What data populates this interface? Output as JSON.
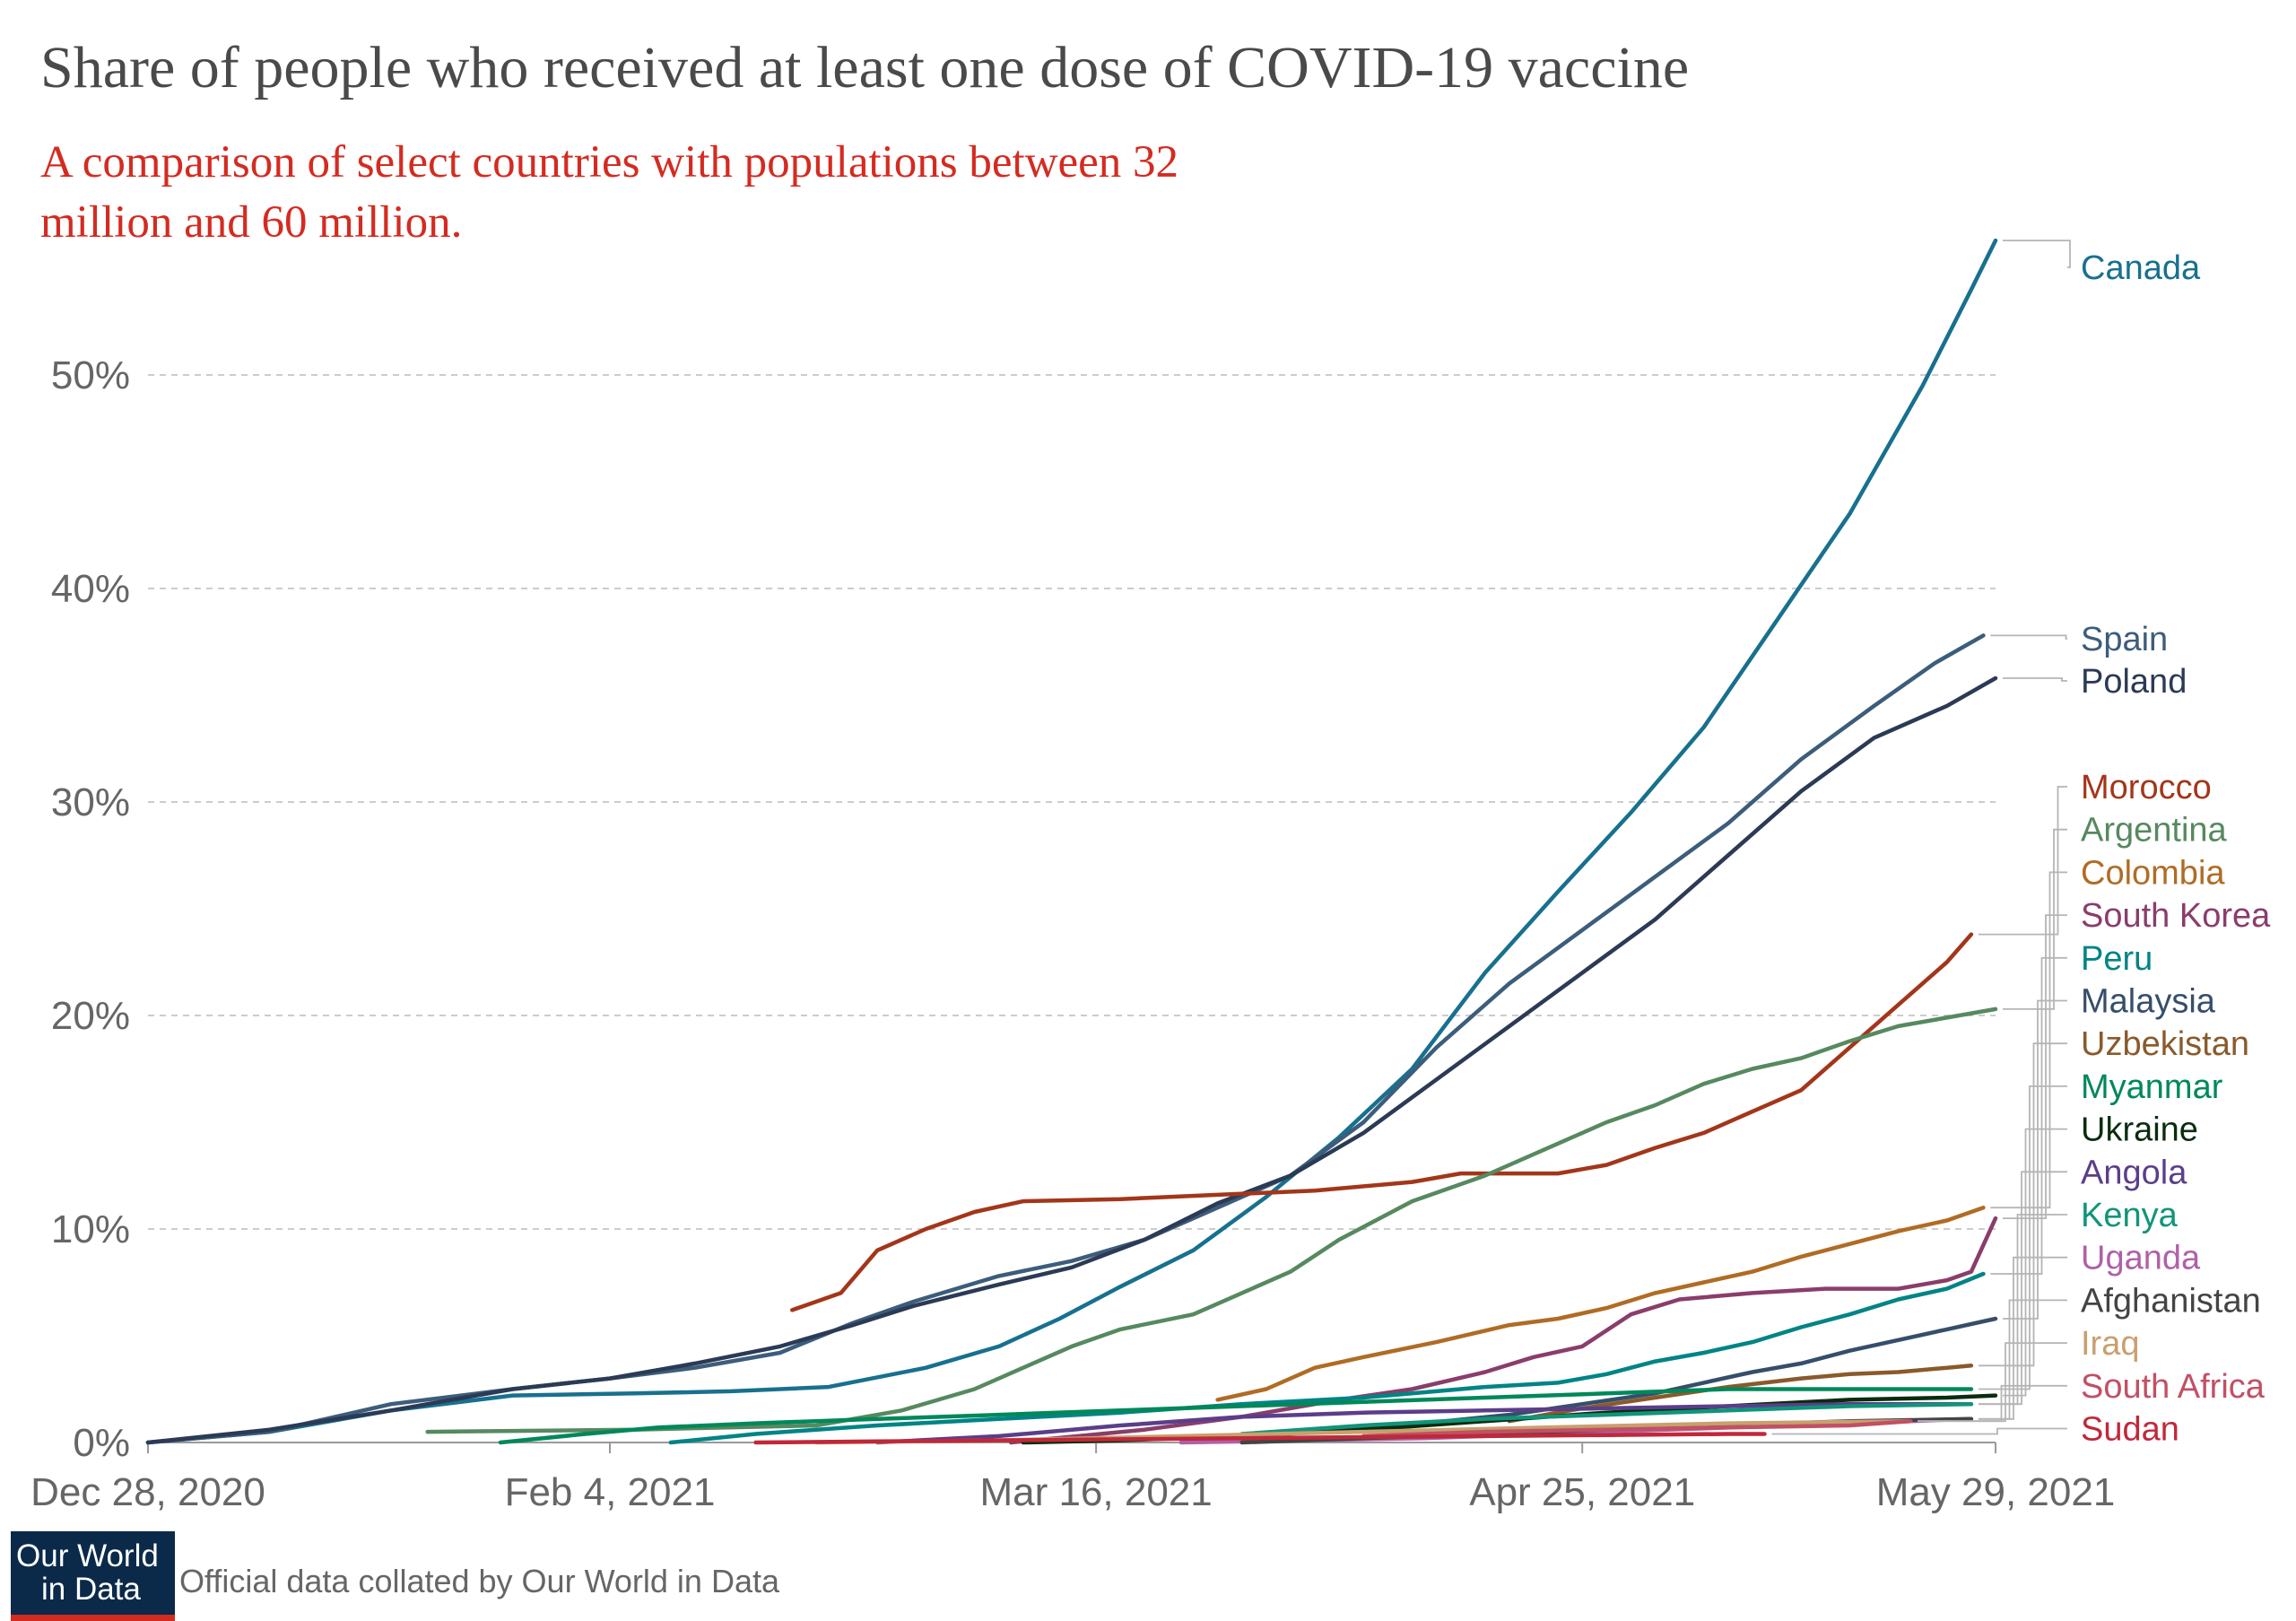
{
  "title": "Share of people who received at least one dose of COVID-19 vaccine",
  "subtitle": "A comparison of select countries with populations between 32 million and 60 million.",
  "source": "Official data collated by Our World in Data",
  "logo": {
    "line1": "Our World",
    "line2": "in Data"
  },
  "chart_data": {
    "type": "line",
    "title": "Share of people who received at least one dose of COVID-19 vaccine",
    "xlabel": "",
    "ylabel": "",
    "x_unit": "days since Dec 28, 2020",
    "xlim": [
      0,
      152
    ],
    "ylim": [
      0,
      56
    ],
    "x_ticks": [
      {
        "day": 0,
        "label": "Dec 28, 2020"
      },
      {
        "day": 38,
        "label": "Feb 4, 2021"
      },
      {
        "day": 78,
        "label": "Mar 16, 2021"
      },
      {
        "day": 118,
        "label": "Apr 25, 2021"
      },
      {
        "day": 152,
        "label": "May 29, 2021"
      }
    ],
    "y_ticks": [
      {
        "value": 0,
        "label": "0%"
      },
      {
        "value": 10,
        "label": "10%"
      },
      {
        "value": 20,
        "label": "20%"
      },
      {
        "value": 30,
        "label": "30%"
      },
      {
        "value": 40,
        "label": "40%"
      },
      {
        "value": 50,
        "label": "50%"
      }
    ],
    "gridlines": [
      10,
      20,
      30,
      40,
      50
    ],
    "series": [
      {
        "name": "Canada",
        "color": "#18708f",
        "points": [
          [
            0,
            0
          ],
          [
            10,
            0.5
          ],
          [
            20,
            1.5
          ],
          [
            30,
            2.2
          ],
          [
            40,
            2.3
          ],
          [
            48,
            2.4
          ],
          [
            56,
            2.6
          ],
          [
            64,
            3.5
          ],
          [
            70,
            4.5
          ],
          [
            75,
            5.8
          ],
          [
            80,
            7.3
          ],
          [
            86,
            9.0
          ],
          [
            92,
            11.5
          ],
          [
            98,
            14.3
          ],
          [
            104,
            17.5
          ],
          [
            110,
            22.0
          ],
          [
            116,
            25.8
          ],
          [
            122,
            29.5
          ],
          [
            128,
            33.5
          ],
          [
            134,
            38.5
          ],
          [
            140,
            43.5
          ],
          [
            146,
            49.5
          ],
          [
            150,
            54.0
          ],
          [
            152,
            56.3
          ]
        ]
      },
      {
        "name": "Spain",
        "color": "#3c5d7b",
        "points": [
          [
            0,
            0
          ],
          [
            10,
            0.5
          ],
          [
            20,
            1.8
          ],
          [
            30,
            2.5
          ],
          [
            38,
            3.0
          ],
          [
            45,
            3.5
          ],
          [
            52,
            4.2
          ],
          [
            58,
            5.6
          ],
          [
            63,
            6.6
          ],
          [
            70,
            7.8
          ],
          [
            76,
            8.5
          ],
          [
            82,
            9.5
          ],
          [
            88,
            11.0
          ],
          [
            94,
            12.5
          ],
          [
            100,
            15.0
          ],
          [
            106,
            18.5
          ],
          [
            112,
            21.5
          ],
          [
            118,
            24.0
          ],
          [
            124,
            26.5
          ],
          [
            130,
            29.0
          ],
          [
            136,
            32.0
          ],
          [
            142,
            34.5
          ],
          [
            147,
            36.5
          ],
          [
            151,
            37.8
          ]
        ]
      },
      {
        "name": "Poland",
        "color": "#2b3a55",
        "points": [
          [
            0,
            0
          ],
          [
            10,
            0.6
          ],
          [
            20,
            1.5
          ],
          [
            30,
            2.5
          ],
          [
            38,
            3.0
          ],
          [
            45,
            3.7
          ],
          [
            52,
            4.5
          ],
          [
            58,
            5.5
          ],
          [
            63,
            6.4
          ],
          [
            70,
            7.4
          ],
          [
            76,
            8.2
          ],
          [
            82,
            9.5
          ],
          [
            88,
            11.2
          ],
          [
            94,
            12.5
          ],
          [
            100,
            14.5
          ],
          [
            106,
            17.0
          ],
          [
            112,
            19.5
          ],
          [
            118,
            22.0
          ],
          [
            124,
            24.5
          ],
          [
            130,
            27.5
          ],
          [
            136,
            30.5
          ],
          [
            142,
            33.0
          ],
          [
            148,
            34.5
          ],
          [
            152,
            35.8
          ]
        ]
      },
      {
        "name": "Morocco",
        "color": "#a3361a",
        "points": [
          [
            53,
            6.2
          ],
          [
            57,
            7.0
          ],
          [
            60,
            9.0
          ],
          [
            64,
            10.0
          ],
          [
            68,
            10.8
          ],
          [
            72,
            11.3
          ],
          [
            80,
            11.4
          ],
          [
            88,
            11.6
          ],
          [
            96,
            11.8
          ],
          [
            104,
            12.2
          ],
          [
            108,
            12.6
          ],
          [
            116,
            12.6
          ],
          [
            120,
            13.0
          ],
          [
            124,
            13.8
          ],
          [
            128,
            14.5
          ],
          [
            132,
            15.5
          ],
          [
            136,
            16.5
          ],
          [
            140,
            18.5
          ],
          [
            144,
            20.5
          ],
          [
            148,
            22.5
          ],
          [
            150,
            23.8
          ]
        ]
      },
      {
        "name": "Argentina",
        "color": "#56895f",
        "points": [
          [
            23,
            0.5
          ],
          [
            40,
            0.6
          ],
          [
            55,
            0.8
          ],
          [
            62,
            1.5
          ],
          [
            68,
            2.5
          ],
          [
            72,
            3.5
          ],
          [
            76,
            4.5
          ],
          [
            80,
            5.3
          ],
          [
            86,
            6.0
          ],
          [
            90,
            7.0
          ],
          [
            94,
            8.0
          ],
          [
            98,
            9.5
          ],
          [
            104,
            11.3
          ],
          [
            110,
            12.5
          ],
          [
            116,
            14.0
          ],
          [
            120,
            15.0
          ],
          [
            124,
            15.8
          ],
          [
            128,
            16.8
          ],
          [
            132,
            17.5
          ],
          [
            136,
            18.0
          ],
          [
            140,
            18.8
          ],
          [
            144,
            19.5
          ],
          [
            148,
            19.9
          ],
          [
            152,
            20.3
          ]
        ]
      },
      {
        "name": "Colombia",
        "color": "#b06c24",
        "points": [
          [
            88,
            2.0
          ],
          [
            92,
            2.5
          ],
          [
            96,
            3.5
          ],
          [
            100,
            4.0
          ],
          [
            106,
            4.7
          ],
          [
            112,
            5.5
          ],
          [
            116,
            5.8
          ],
          [
            120,
            6.3
          ],
          [
            124,
            7.0
          ],
          [
            128,
            7.5
          ],
          [
            132,
            8.0
          ],
          [
            136,
            8.7
          ],
          [
            140,
            9.3
          ],
          [
            144,
            9.9
          ],
          [
            148,
            10.4
          ],
          [
            151,
            11.0
          ]
        ]
      },
      {
        "name": "South Korea",
        "color": "#8a3d6b",
        "points": [
          [
            71,
            0
          ],
          [
            82,
            0.6
          ],
          [
            90,
            1.2
          ],
          [
            98,
            2.0
          ],
          [
            104,
            2.5
          ],
          [
            110,
            3.3
          ],
          [
            114,
            4.0
          ],
          [
            118,
            4.5
          ],
          [
            122,
            6.0
          ],
          [
            126,
            6.7
          ],
          [
            132,
            7.0
          ],
          [
            138,
            7.2
          ],
          [
            144,
            7.2
          ],
          [
            148,
            7.6
          ],
          [
            150,
            8.0
          ],
          [
            152,
            10.5
          ]
        ]
      },
      {
        "name": "Peru",
        "color": "#008485",
        "points": [
          [
            43,
            0
          ],
          [
            50,
            0.4
          ],
          [
            60,
            0.8
          ],
          [
            70,
            1.1
          ],
          [
            80,
            1.4
          ],
          [
            90,
            1.8
          ],
          [
            100,
            2.1
          ],
          [
            106,
            2.4
          ],
          [
            110,
            2.6
          ],
          [
            116,
            2.8
          ],
          [
            120,
            3.2
          ],
          [
            124,
            3.8
          ],
          [
            128,
            4.2
          ],
          [
            132,
            4.7
          ],
          [
            136,
            5.4
          ],
          [
            140,
            6.0
          ],
          [
            144,
            6.7
          ],
          [
            148,
            7.2
          ],
          [
            151,
            7.9
          ]
        ]
      },
      {
        "name": "Malaysia",
        "color": "#364e6b",
        "points": [
          [
            85,
            0.2
          ],
          [
            95,
            0.5
          ],
          [
            105,
            0.9
          ],
          [
            112,
            1.3
          ],
          [
            118,
            1.8
          ],
          [
            124,
            2.3
          ],
          [
            128,
            2.8
          ],
          [
            132,
            3.3
          ],
          [
            136,
            3.7
          ],
          [
            140,
            4.3
          ],
          [
            144,
            4.8
          ],
          [
            148,
            5.3
          ],
          [
            152,
            5.8
          ]
        ]
      },
      {
        "name": "Uzbekistan",
        "color": "#8a5a2b",
        "points": [
          [
            112,
            1.0
          ],
          [
            118,
            1.6
          ],
          [
            124,
            2.1
          ],
          [
            130,
            2.6
          ],
          [
            136,
            3.0
          ],
          [
            140,
            3.2
          ],
          [
            144,
            3.3
          ],
          [
            148,
            3.5
          ],
          [
            150,
            3.6
          ]
        ]
      },
      {
        "name": "Myanmar",
        "color": "#00885a",
        "points": [
          [
            29,
            0
          ],
          [
            36,
            0.4
          ],
          [
            42,
            0.7
          ],
          [
            50,
            0.9
          ],
          [
            60,
            1.1
          ],
          [
            70,
            1.3
          ],
          [
            80,
            1.5
          ],
          [
            90,
            1.7
          ],
          [
            100,
            1.9
          ],
          [
            110,
            2.1
          ],
          [
            120,
            2.3
          ],
          [
            130,
            2.5
          ],
          [
            140,
            2.5
          ],
          [
            150,
            2.5
          ]
        ]
      },
      {
        "name": "Ukraine",
        "color": "#0b2c0f",
        "points": [
          [
            72,
            0
          ],
          [
            80,
            0.1
          ],
          [
            90,
            0.3
          ],
          [
            100,
            0.6
          ],
          [
            110,
            1.0
          ],
          [
            120,
            1.4
          ],
          [
            130,
            1.7
          ],
          [
            140,
            2.0
          ],
          [
            148,
            2.1
          ],
          [
            152,
            2.2
          ]
        ]
      },
      {
        "name": "Angola",
        "color": "#5b3e8a",
        "points": [
          [
            60,
            0
          ],
          [
            70,
            0.3
          ],
          [
            80,
            0.8
          ],
          [
            90,
            1.2
          ],
          [
            100,
            1.4
          ],
          [
            110,
            1.5
          ],
          [
            120,
            1.6
          ],
          [
            130,
            1.7
          ],
          [
            140,
            1.8
          ],
          [
            150,
            1.8
          ]
        ]
      },
      {
        "name": "Kenya",
        "color": "#11947a",
        "points": [
          [
            90,
            0.4
          ],
          [
            100,
            0.8
          ],
          [
            110,
            1.1
          ],
          [
            120,
            1.3
          ],
          [
            130,
            1.5
          ],
          [
            140,
            1.7
          ],
          [
            150,
            1.8
          ]
        ]
      },
      {
        "name": "Uganda",
        "color": "#b060a8",
        "points": [
          [
            85,
            0
          ],
          [
            95,
            0.1
          ],
          [
            105,
            0.2
          ],
          [
            115,
            0.4
          ],
          [
            125,
            0.6
          ],
          [
            135,
            0.8
          ],
          [
            145,
            1.0
          ],
          [
            150,
            1.1
          ]
        ]
      },
      {
        "name": "Afghanistan",
        "color": "#444444",
        "points": [
          [
            90,
            0
          ],
          [
            100,
            0.2
          ],
          [
            110,
            0.4
          ],
          [
            120,
            0.6
          ],
          [
            130,
            0.8
          ],
          [
            140,
            1.0
          ],
          [
            150,
            1.1
          ]
        ]
      },
      {
        "name": "Iraq",
        "color": "#c8a06e",
        "points": [
          [
            55,
            0
          ],
          [
            70,
            0.1
          ],
          [
            85,
            0.3
          ],
          [
            100,
            0.5
          ],
          [
            115,
            0.7
          ],
          [
            130,
            0.9
          ],
          [
            145,
            1.0
          ]
        ]
      },
      {
        "name": "South Africa",
        "color": "#c15065",
        "points": [
          [
            100,
            0.3
          ],
          [
            110,
            0.5
          ],
          [
            120,
            0.6
          ],
          [
            130,
            0.7
          ],
          [
            140,
            0.8
          ],
          [
            145,
            1.0
          ]
        ]
      },
      {
        "name": "Sudan",
        "color": "#c0283a",
        "points": [
          [
            50,
            0
          ],
          [
            60,
            0.05
          ],
          [
            70,
            0.1
          ],
          [
            80,
            0.15
          ],
          [
            90,
            0.2
          ],
          [
            100,
            0.25
          ],
          [
            110,
            0.3
          ],
          [
            120,
            0.35
          ],
          [
            130,
            0.4
          ],
          [
            133,
            0.4
          ]
        ]
      }
    ]
  }
}
